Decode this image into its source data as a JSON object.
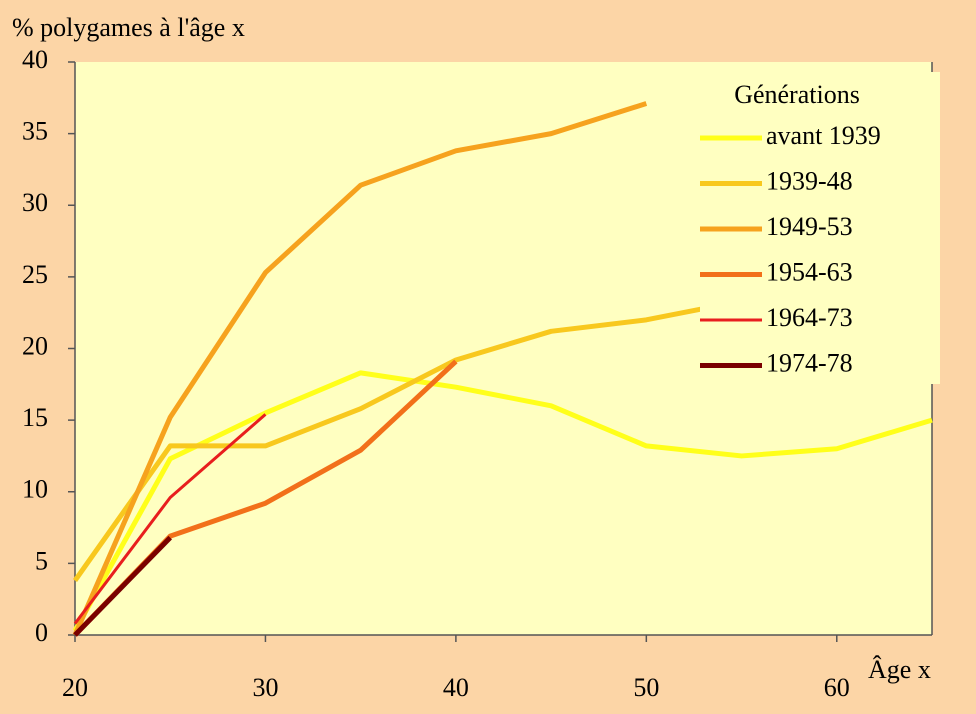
{
  "chart_data": {
    "type": "line",
    "y_label": "% polygames à l'âge x",
    "x_label": "Âge x",
    "x": [
      20,
      25,
      30,
      35,
      40,
      45,
      50,
      55,
      60,
      65
    ],
    "xlim": [
      20,
      65
    ],
    "xticks": [
      20,
      30,
      40,
      50,
      60
    ],
    "ylim": [
      0,
      40
    ],
    "yticks": [
      0,
      5,
      10,
      15,
      20,
      25,
      30,
      35,
      40
    ],
    "legend_title": "Générations",
    "legend": "top-right",
    "series": [
      {
        "name": "avant 1939",
        "color": "#FFFF1A",
        "values": [
          0.3,
          12.3,
          15.5,
          18.3,
          17.3,
          16.0,
          13.2,
          12.5,
          13.0,
          15.0
        ]
      },
      {
        "name": "1939-48",
        "color": "#F8C81E",
        "values": [
          3.8,
          13.2,
          13.2,
          15.8,
          19.2,
          21.2,
          22.0,
          23.3,
          null,
          null
        ]
      },
      {
        "name": "1949-53",
        "color": "#F6A21E",
        "values": [
          0,
          15.2,
          25.3,
          31.4,
          33.8,
          35.0,
          37.1,
          null,
          null,
          null
        ]
      },
      {
        "name": "1954-63",
        "color": "#F2701A",
        "values": [
          0,
          6.9,
          9.2,
          12.9,
          19.1,
          null,
          null,
          null,
          null,
          null
        ]
      },
      {
        "name": "1964-73",
        "color": "#E81E1E",
        "values": [
          0.8,
          9.6,
          15.4,
          null,
          null,
          null,
          null,
          null,
          null,
          null
        ]
      },
      {
        "name": "1974-78",
        "color": "#7A0000",
        "values": [
          0,
          6.8,
          null,
          null,
          null,
          null,
          null,
          null,
          null,
          null
        ]
      }
    ]
  }
}
